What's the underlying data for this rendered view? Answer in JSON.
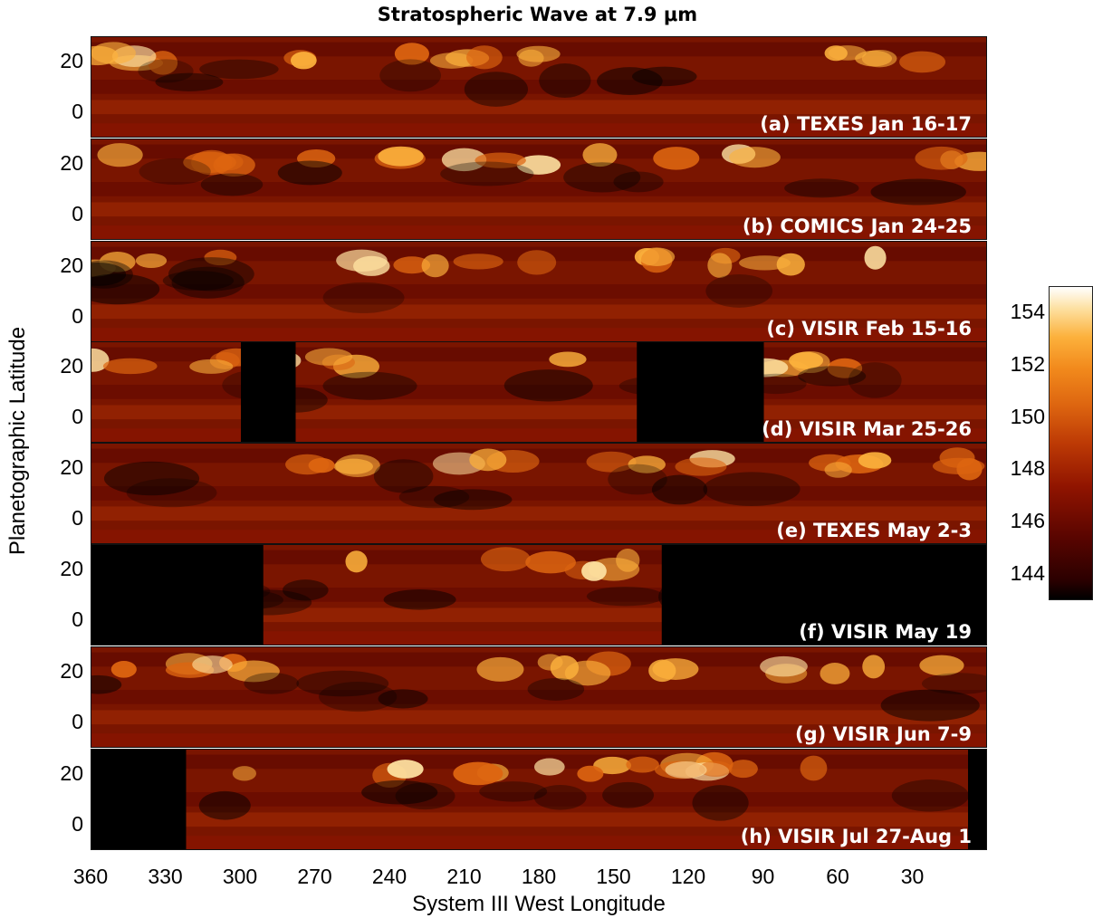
{
  "chart_data": {
    "type": "heatmap",
    "title": "Stratospheric Wave at 7.9 μm",
    "xlabel": "System III West Longitude",
    "ylabel": "Planetographic Latitude",
    "x_range": [
      360,
      0
    ],
    "y_range": [
      -10,
      30
    ],
    "x_ticks": [
      "360",
      "330",
      "300",
      "270",
      "240",
      "210",
      "180",
      "150",
      "120",
      "90",
      "60",
      "30"
    ],
    "y_ticks": [
      "20",
      "0"
    ],
    "colorbar": {
      "range": [
        143,
        155
      ],
      "ticks": [
        "154",
        "152",
        "150",
        "148",
        "146",
        "144"
      ]
    },
    "panels": [
      {
        "label": "(a) TEXES Jan 16-17",
        "mask_ranges": []
      },
      {
        "label": "(b) COMICS Jan 24-25",
        "mask_ranges": []
      },
      {
        "label": "(c) VISIR Feb 15-16",
        "mask_ranges": []
      },
      {
        "label": "(d) VISIR Mar 25-26",
        "mask_ranges": [
          [
            300,
            278
          ],
          [
            141,
            90
          ]
        ]
      },
      {
        "label": "(e) TEXES May 2-3",
        "mask_ranges": []
      },
      {
        "label": "(f) VISIR May 19",
        "mask_ranges": [
          [
            360,
            291
          ],
          [
            131,
            0
          ]
        ]
      },
      {
        "label": "(g) VISIR Jun 7-9",
        "mask_ranges": []
      },
      {
        "label": "(h) VISIR Jul 27-Aug 1",
        "mask_ranges": [
          [
            360,
            322
          ],
          [
            8,
            0
          ]
        ]
      }
    ]
  },
  "colors": {
    "colormap": [
      "#000000",
      "#5a0500",
      "#901400",
      "#bd3a05",
      "#dd6510",
      "#f28a1c",
      "#fcb13c",
      "#fde0a0",
      "#ffffff"
    ],
    "panel_base": "#7a1500",
    "mask": "#000000",
    "label_text": "#ffffff"
  }
}
